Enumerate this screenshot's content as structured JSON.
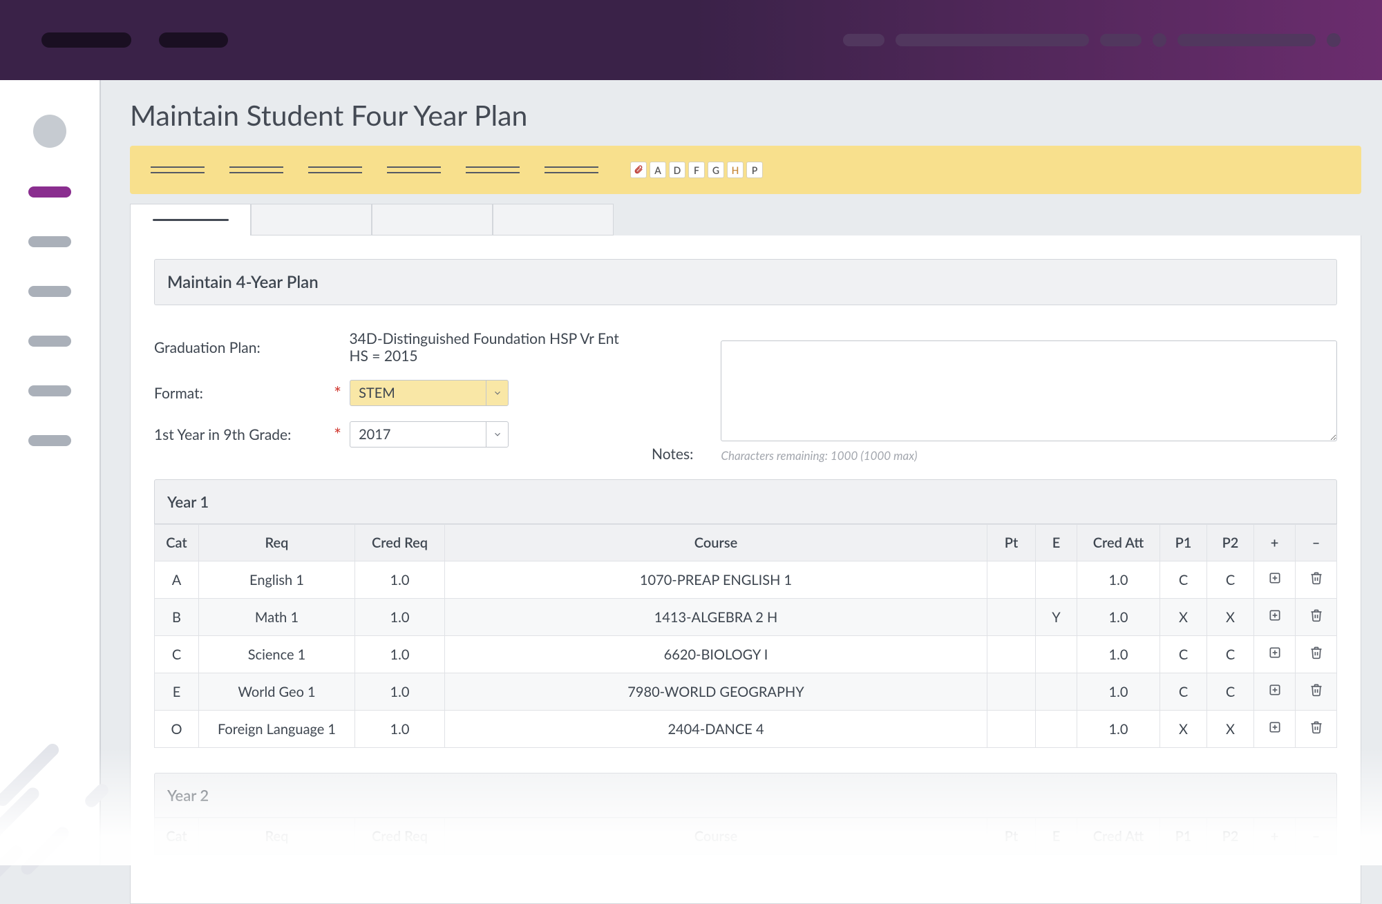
{
  "page": {
    "title": "Maintain Student Four Year Plan",
    "section_title": "Maintain 4-Year Plan"
  },
  "flags": [
    "A",
    "D",
    "F",
    "G",
    "H",
    "P"
  ],
  "form": {
    "graduation_plan_label": "Graduation Plan:",
    "graduation_plan_value": "34D-Distinguished Foundation HSP Vr Ent HS = 2015",
    "format_label": "Format:",
    "format_value": "STEM",
    "first_year_label": "1st Year in 9th Grade:",
    "first_year_value": "2017",
    "notes_label": "Notes:",
    "char_hint": "Characters remaining: 1000 (1000 max)"
  },
  "table": {
    "columns": [
      "Cat",
      "Req",
      "Cred Req",
      "Course",
      "Pt",
      "E",
      "Cred Att",
      "P1",
      "P2",
      "+",
      "–"
    ]
  },
  "years": [
    {
      "label": "Year 1",
      "rows": [
        {
          "cat": "A",
          "req": "English 1",
          "cred_req": "1.0",
          "course": "1070-PREAP ENGLISH 1",
          "pt": "",
          "e": "",
          "cred_att": "1.0",
          "p1": "C",
          "p2": "C",
          "p1_red": false,
          "p2_red": false
        },
        {
          "cat": "B",
          "req": "Math 1",
          "cred_req": "1.0",
          "course": "1413-ALGEBRA 2 H",
          "pt": "",
          "e": "Y",
          "cred_att": "1.0",
          "p1": "X",
          "p2": "X",
          "p1_red": true,
          "p2_red": true
        },
        {
          "cat": "C",
          "req": "Science 1",
          "cred_req": "1.0",
          "course": "6620-BIOLOGY I",
          "pt": "",
          "e": "",
          "cred_att": "1.0",
          "p1": "C",
          "p2": "C",
          "p1_red": false,
          "p2_red": false
        },
        {
          "cat": "E",
          "req": "World Geo 1",
          "cred_req": "1.0",
          "course": "7980-WORLD GEOGRAPHY",
          "pt": "",
          "e": "",
          "cred_att": "1.0",
          "p1": "C",
          "p2": "C",
          "p1_red": false,
          "p2_red": false
        },
        {
          "cat": "O",
          "req": "Foreign Language 1",
          "cred_req": "1.0",
          "course": "2404-DANCE 4",
          "pt": "",
          "e": "",
          "cred_att": "1.0",
          "p1": "X",
          "p2": "X",
          "p1_red": true,
          "p2_red": true
        }
      ]
    },
    {
      "label": "Year 2",
      "rows": []
    }
  ],
  "colors": {
    "header_gradient_from": "#3a2248",
    "header_gradient_to": "#6b2d6e",
    "yellow_bar": "#f8e08d",
    "accent": "#8a2e8f",
    "red": "#c0453e",
    "border": "#d3d6db",
    "text": "#3e4650",
    "bg": "#e8ebee"
  }
}
